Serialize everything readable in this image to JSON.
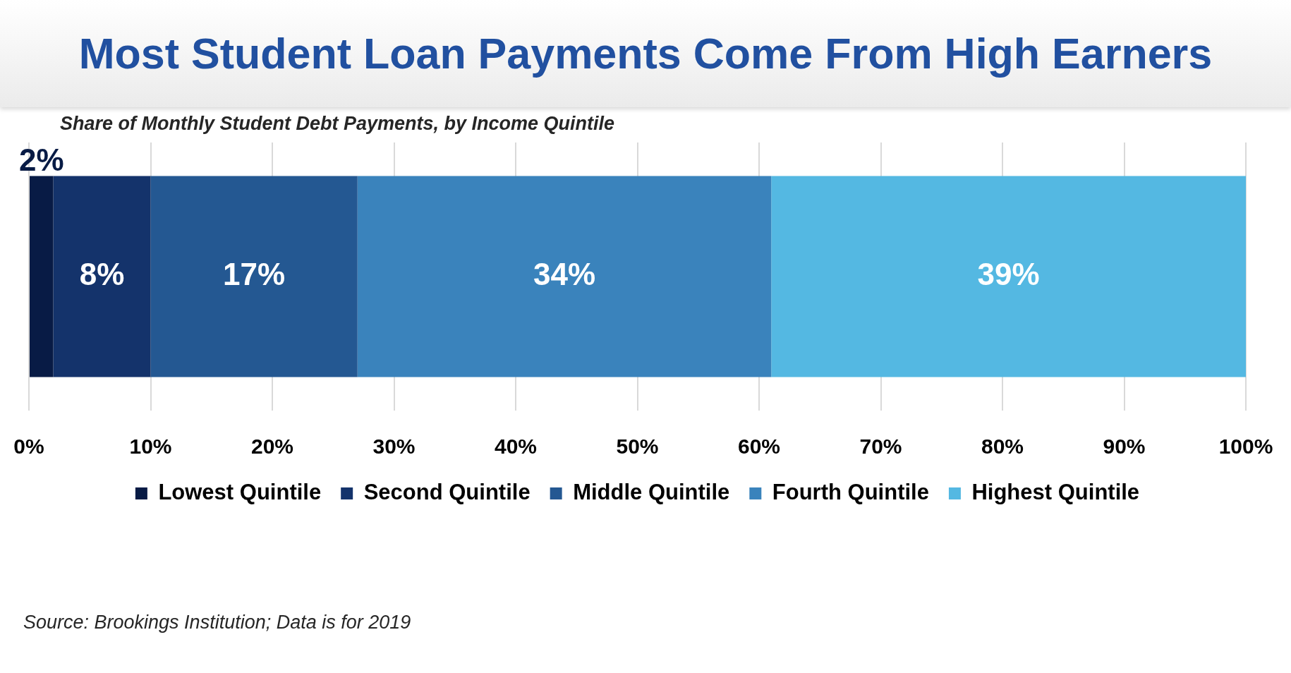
{
  "chart_data": {
    "type": "bar",
    "orientation": "horizontal",
    "stacked": true,
    "title": "Most Student Loan Payments Come From High Earners",
    "subtitle": "Share of Monthly Student Debt Payments, by Income Quintile",
    "annotations": [
      "Source: Brookings Institution; Data is for 2019"
    ],
    "categories": [
      null
    ],
    "series": [
      {
        "name": "Lowest Quintile",
        "color": "#081b45",
        "values": [
          2
        ],
        "value_labels": [
          "2%"
        ]
      },
      {
        "name": "Second Quintile",
        "color": "#14336b",
        "values": [
          8
        ],
        "value_labels": [
          "8%"
        ]
      },
      {
        "name": "Middle Quintile",
        "color": "#245892",
        "values": [
          17
        ],
        "value_labels": [
          "17%"
        ]
      },
      {
        "name": "Fourth Quintile",
        "color": "#3a83bc",
        "values": [
          34
        ],
        "value_labels": [
          "34%"
        ]
      },
      {
        "name": "Highest Quintile",
        "color": "#54b8e2",
        "values": [
          39
        ],
        "value_labels": [
          "39%"
        ]
      }
    ],
    "xlim": [
      0,
      100
    ],
    "xticks": [
      {
        "value": 0,
        "label": "0%"
      },
      {
        "value": 10,
        "label": "10%"
      },
      {
        "value": 20,
        "label": "20%"
      },
      {
        "value": 30,
        "label": "30%"
      },
      {
        "value": 40,
        "label": "40%"
      },
      {
        "value": 50,
        "label": "50%"
      },
      {
        "value": 60,
        "label": "60%"
      },
      {
        "value": 70,
        "label": "70%"
      },
      {
        "value": 80,
        "label": "80%"
      },
      {
        "value": 90,
        "label": "90%"
      },
      {
        "value": 100,
        "label": "100%"
      }
    ],
    "grid": "x",
    "legend": "bottom"
  }
}
